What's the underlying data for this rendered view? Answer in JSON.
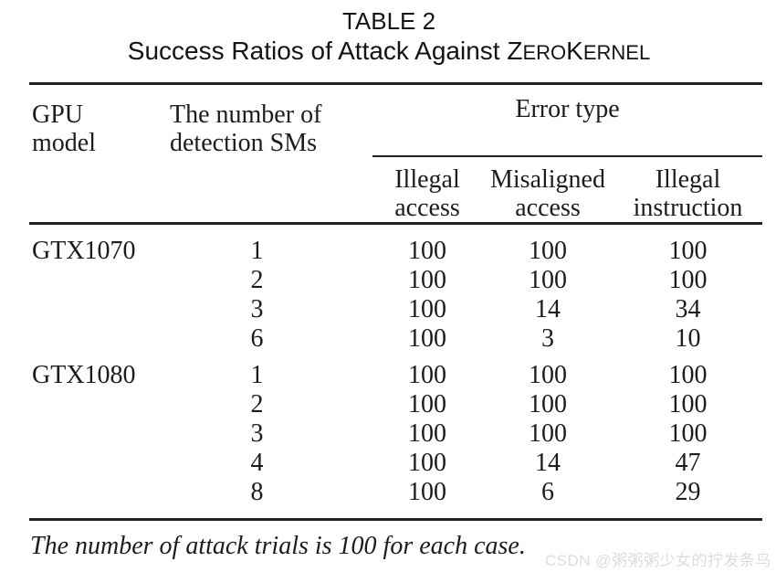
{
  "caption": {
    "label": "TABLE 2",
    "title_pre": "Success Ratios of Attack Against ",
    "brand": {
      "z": "Z",
      "ero": "ERO",
      "k": "K",
      "ernel": "ERNEL"
    }
  },
  "table": {
    "headers": {
      "gpu_model": "GPU\nmodel",
      "detection_sms": "The number of\ndetection SMs",
      "error_type": "Error type",
      "sub": {
        "illegal_access": "Illegal\naccess",
        "misaligned_access": "Misaligned\naccess",
        "illegal_instruction": "Illegal\ninstruction"
      }
    },
    "rows": [
      {
        "gpu": "GTX1070",
        "sms": "1",
        "illegal_access": "100",
        "misaligned_access": "100",
        "illegal_instruction": "100"
      },
      {
        "gpu": "",
        "sms": "2",
        "illegal_access": "100",
        "misaligned_access": "100",
        "illegal_instruction": "100"
      },
      {
        "gpu": "",
        "sms": "3",
        "illegal_access": "100",
        "misaligned_access": "14",
        "illegal_instruction": "34"
      },
      {
        "gpu": "",
        "sms": "6",
        "illegal_access": "100",
        "misaligned_access": "3",
        "illegal_instruction": "10"
      },
      {
        "gpu": "GTX1080",
        "sms": "1",
        "illegal_access": "100",
        "misaligned_access": "100",
        "illegal_instruction": "100"
      },
      {
        "gpu": "",
        "sms": "2",
        "illegal_access": "100",
        "misaligned_access": "100",
        "illegal_instruction": "100"
      },
      {
        "gpu": "",
        "sms": "3",
        "illegal_access": "100",
        "misaligned_access": "100",
        "illegal_instruction": "100"
      },
      {
        "gpu": "",
        "sms": "4",
        "illegal_access": "100",
        "misaligned_access": "14",
        "illegal_instruction": "47"
      },
      {
        "gpu": "",
        "sms": "8",
        "illegal_access": "100",
        "misaligned_access": "6",
        "illegal_instruction": "29"
      }
    ],
    "footnote": "The number of attack trials is 100 for each case."
  },
  "watermark": "CSDN @粥粥粥少女的拧发条鸟",
  "colors": {
    "text": "#1c1c1c",
    "rule": "#222222",
    "watermark": "#dcdcdc",
    "background": "#ffffff"
  }
}
